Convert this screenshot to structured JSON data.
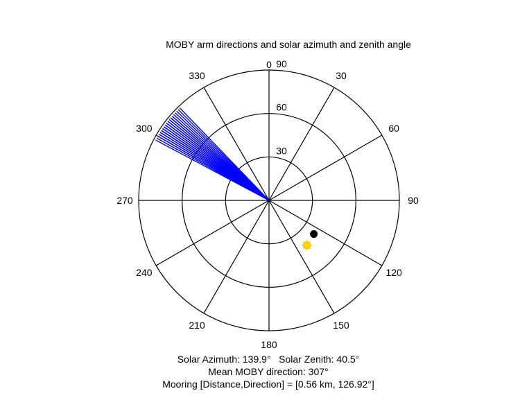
{
  "chart_data": {
    "type": "polar",
    "title": "MOBY arm directions and solar azimuth and zenith angle",
    "angle_zero": "top",
    "angle_direction": "clockwise",
    "radial_max": 90,
    "radial_rings": [
      30,
      60,
      90
    ],
    "radial_tick_labels": [
      "30",
      "60",
      "90"
    ],
    "spoke_angles": [
      0,
      30,
      60,
      90,
      120,
      150,
      180,
      210,
      240,
      270,
      300,
      330
    ],
    "angle_tick_labels": [
      "0",
      "30",
      "60",
      "90",
      "120",
      "150",
      "180",
      "210",
      "240",
      "270",
      "300",
      "330"
    ],
    "arm_directions": [
      298,
      299,
      300,
      300,
      301,
      301,
      302,
      302,
      303,
      303,
      303,
      304,
      304,
      305,
      305,
      305,
      306,
      306,
      307,
      307,
      308,
      308,
      309,
      309,
      310,
      310,
      311,
      311,
      312,
      313,
      314,
      315,
      316
    ],
    "solar_azimuth": 139.9,
    "solar_zenith": 40.5,
    "mean_moby_direction": 307,
    "mooring_distance_km": 0.56,
    "mooring_direction": 126.92,
    "colors": {
      "arms": "#0000ff",
      "sun": "#ffd700",
      "mooring": "#000000",
      "axes": "#000000"
    },
    "footer": [
      "Solar Azimuth: 139.9°   Solar Zenith: 40.5°",
      "Mean MOBY direction: 307°",
      "Mooring [Distance,Direction] = [0.56 km, 126.92°]"
    ]
  }
}
